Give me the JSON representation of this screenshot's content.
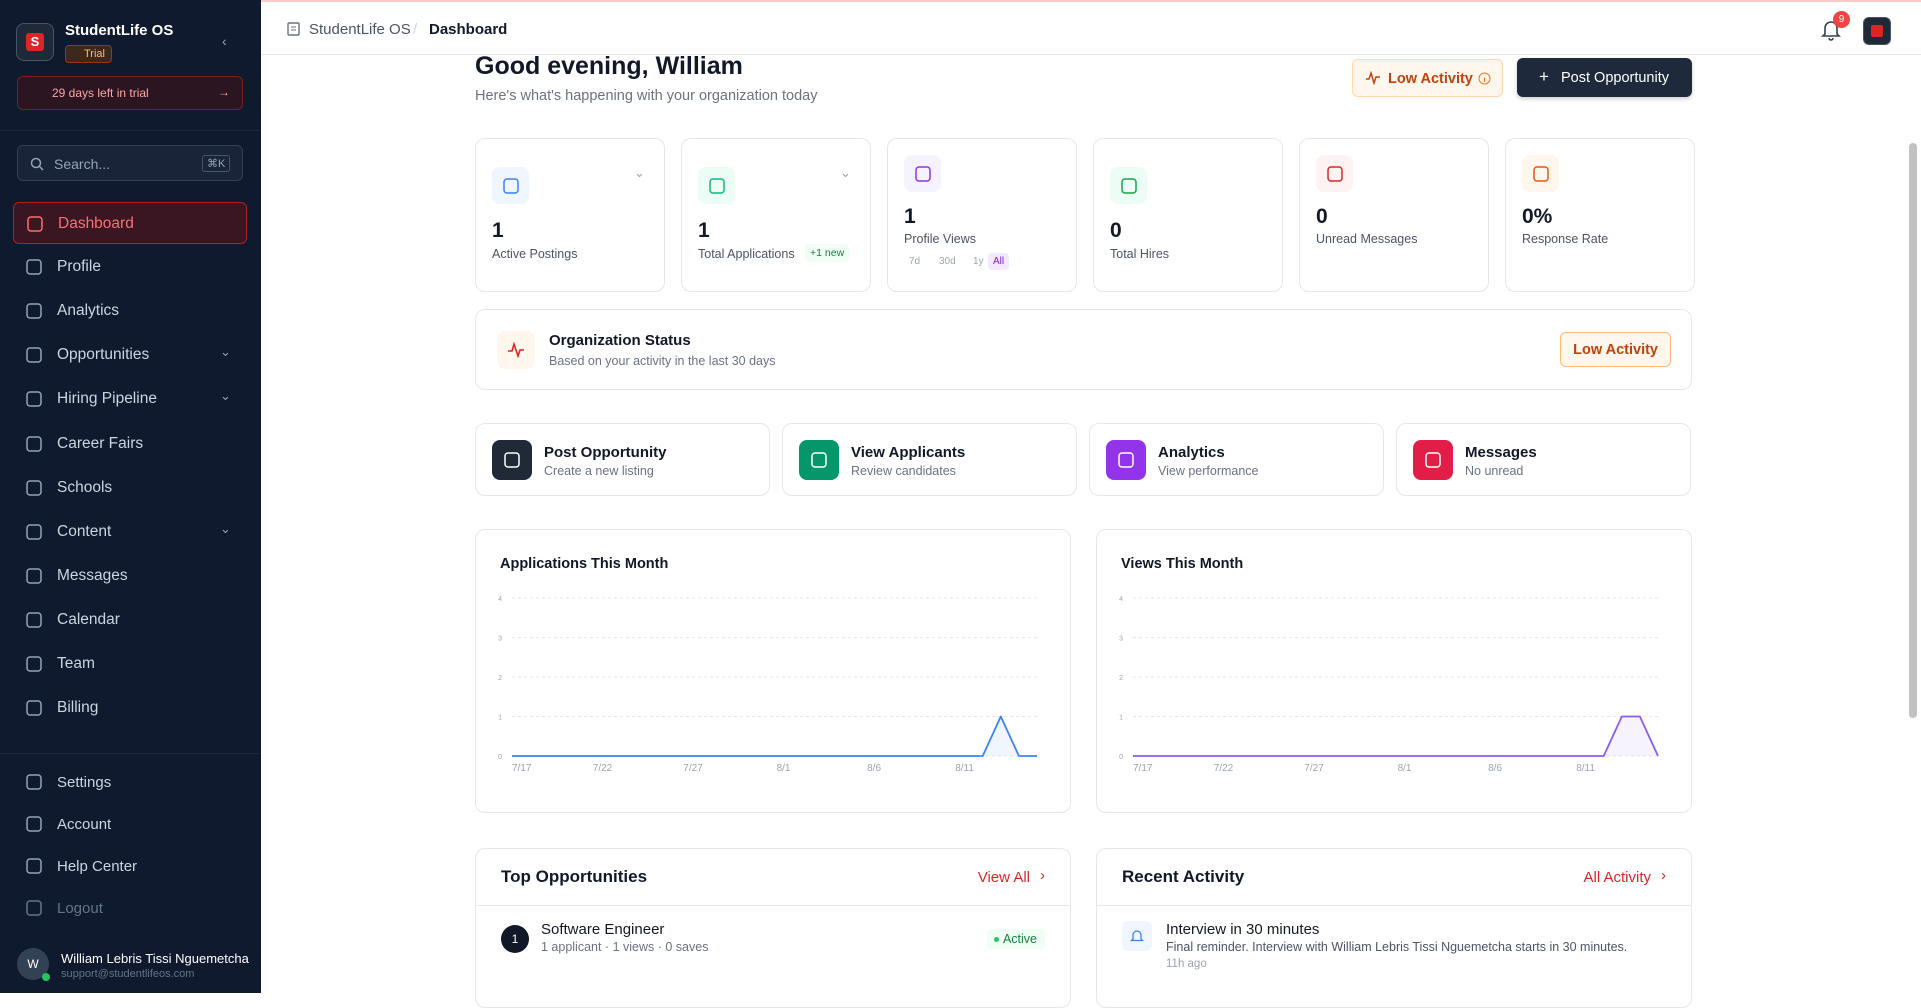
{
  "sidebar": {
    "brand": "StudentLife OS",
    "badge": "Trial",
    "trial_notice": "29 days left in trial",
    "search_placeholder": "Search...",
    "search_shortcut": "⌘K",
    "nav": [
      "Dashboard",
      "Profile",
      "Analytics",
      "Opportunities",
      "Hiring Pipeline",
      "Career Fairs",
      "Schools",
      "Content",
      "Messages",
      "Calendar",
      "Team",
      "Billing"
    ],
    "footer_nav": [
      "Settings",
      "Account",
      "Help Center",
      "Logout"
    ],
    "user": {
      "initial": "W",
      "name": "William Lebris Tissi Nguemetcha",
      "email": "support@studentlifeos.com"
    }
  },
  "topbar": {
    "breadcrumb": [
      "StudentLife OS",
      "Dashboard"
    ],
    "notifications": 9
  },
  "header": {
    "greeting": "Good evening, William",
    "subtitle": "Here's what's happening with your organization today",
    "status_button": "Low Activity",
    "primary_button": "Post Opportunity"
  },
  "stats": [
    {
      "value": 1,
      "label": "Active Postings"
    },
    {
      "value": 1,
      "label": "Total Applications",
      "badge": "+1 new"
    },
    {
      "value": 1,
      "label": "Profile Views",
      "ranges": [
        "7d",
        "30d",
        "1y",
        "All"
      ]
    },
    {
      "value": 0,
      "label": "Total Hires"
    },
    {
      "value": 0,
      "label": "Unread Messages"
    },
    {
      "value": "0%",
      "label": "Response Rate"
    }
  ],
  "org_status": {
    "title": "Organization Status",
    "subtitle": "Based on your activity in the last 30 days",
    "badge": "Low Activity"
  },
  "quick_actions": [
    {
      "title": "Post Opportunity",
      "subtitle": "Create a new listing"
    },
    {
      "title": "View Applicants",
      "subtitle": "Review candidates"
    },
    {
      "title": "Analytics",
      "subtitle": "View performance"
    },
    {
      "title": "Messages",
      "subtitle": "No unread"
    }
  ],
  "chart_data": [
    {
      "type": "line",
      "title": "Applications This Month",
      "color": "#3b82f6",
      "categories": [
        "7/17",
        null,
        null,
        null,
        null,
        "7/22",
        null,
        null,
        null,
        null,
        "7/27",
        null,
        null,
        null,
        null,
        "8/1",
        null,
        null,
        null,
        null,
        "8/6",
        null,
        null,
        null,
        null,
        "8/11",
        null,
        null,
        null,
        null
      ],
      "values": [
        0,
        0,
        0,
        0,
        0,
        0,
        0,
        0,
        0,
        0,
        0,
        0,
        0,
        0,
        0,
        0,
        0,
        0,
        0,
        0,
        0,
        0,
        0,
        0,
        0,
        0,
        0,
        1,
        0,
        0
      ],
      "ylim": [
        0,
        4
      ],
      "yticks": [
        0,
        1,
        2,
        3,
        4
      ],
      "grid": true
    },
    {
      "type": "line",
      "title": "Views This Month",
      "color": "#8b5cf6",
      "categories": [
        "7/17",
        null,
        null,
        null,
        null,
        "7/22",
        null,
        null,
        null,
        null,
        "7/27",
        null,
        null,
        null,
        null,
        "8/1",
        null,
        null,
        null,
        null,
        "8/6",
        null,
        null,
        null,
        null,
        "8/11",
        null,
        null,
        null,
        null
      ],
      "values": [
        0,
        0,
        0,
        0,
        0,
        0,
        0,
        0,
        0,
        0,
        0,
        0,
        0,
        0,
        0,
        0,
        0,
        0,
        0,
        0,
        0,
        0,
        0,
        0,
        0,
        0,
        0,
        1,
        1,
        0
      ],
      "ylim": [
        0,
        4
      ],
      "yticks": [
        0,
        1,
        2,
        3,
        4
      ],
      "grid": true
    }
  ],
  "top_opportunities": {
    "title": "Top Opportunities",
    "link": "View All",
    "items": [
      {
        "rank": 1,
        "title": "Software Engineer",
        "meta": "1 applicant · 1 views · 0 saves",
        "status": "Active"
      }
    ]
  },
  "recent_activity": {
    "title": "Recent Activity",
    "link": "All Activity",
    "items": [
      {
        "title": "Interview in 30 minutes",
        "detail": "Final reminder. Interview with William Lebris Tissi Nguemetcha starts in 30 minutes.",
        "time": "11h ago"
      }
    ]
  }
}
